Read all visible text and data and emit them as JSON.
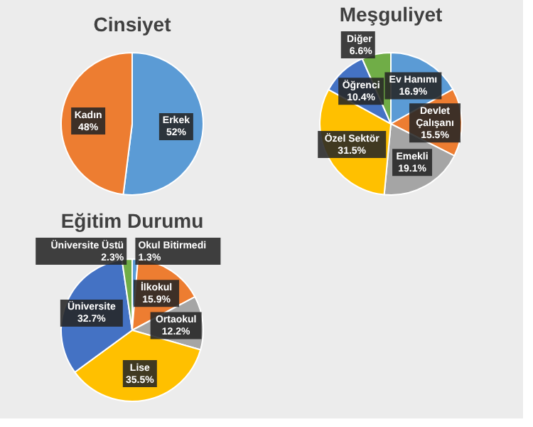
{
  "chart_data": [
    {
      "type": "pie",
      "title": "Cinsiyet",
      "categories": [
        "Erkek",
        "Kadın"
      ],
      "values": [
        52,
        48
      ],
      "colors": [
        "#5b9bd5",
        "#ed7d31"
      ],
      "value_labels": [
        "52%",
        "48%"
      ],
      "legend": false
    },
    {
      "type": "pie",
      "title": "Meşguliyet",
      "categories": [
        "Ev Hanımı",
        "Devlet Çalışanı",
        "Emekli",
        "Özel Sektör",
        "Öğrenci",
        "Diğer"
      ],
      "values": [
        16.9,
        15.5,
        19.1,
        31.5,
        10.4,
        6.6
      ],
      "colors": [
        "#5b9bd5",
        "#ed7d31",
        "#a5a5a5",
        "#ffc000",
        "#4472c4",
        "#70ad47"
      ],
      "value_labels": [
        "16.9%",
        "15.5%",
        "19.1%",
        "31.5%",
        "10.4%",
        "6.6%"
      ],
      "legend": false
    },
    {
      "type": "pie",
      "title": "Eğitim Durumu",
      "categories": [
        "Okul Bitirmedi",
        "İlkokul",
        "Ortaokul",
        "Lise",
        "Üniversite",
        "Üniversite Üstü"
      ],
      "values": [
        1.3,
        15.9,
        12.2,
        35.5,
        32.7,
        2.3
      ],
      "colors": [
        "#5b9bd5",
        "#ed7d31",
        "#a5a5a5",
        "#ffc000",
        "#4472c4",
        "#70ad47"
      ],
      "value_labels": [
        "1.3%",
        "15.9%",
        "12.2%",
        "35.5%",
        "32.7%",
        "2.3%"
      ],
      "legend": false
    }
  ]
}
